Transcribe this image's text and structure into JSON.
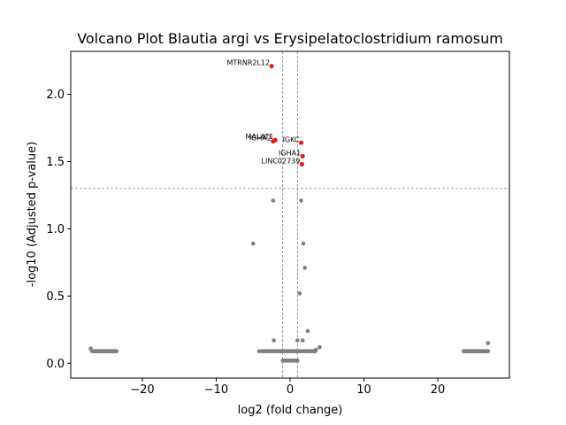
{
  "chart_data": {
    "type": "scatter",
    "title": "Volcano Plot Blautia argi vs Erysipelatoclostridium ramosum",
    "xlabel": "log2 (fold change)",
    "ylabel": "-log10 (Adjusted p-value)",
    "xlim": [
      -29.7,
      29.7
    ],
    "ylim": [
      -0.11,
      2.32
    ],
    "xticks": [
      -20,
      -10,
      0,
      10,
      20
    ],
    "yticks": [
      0.0,
      0.5,
      1.0,
      1.5,
      2.0
    ],
    "xtick_labels": [
      "−20",
      "−10",
      "0",
      "10",
      "20"
    ],
    "ytick_labels": [
      "0.0",
      "0.5",
      "1.0",
      "1.5",
      "2.0"
    ],
    "threshold_lines": {
      "vertical": [
        -1,
        1
      ],
      "horizontal": 1.3
    },
    "colors": {
      "significant": "#e8161b",
      "nonsignificant": "#808080",
      "threshold": "#808080"
    },
    "significant_points": [
      {
        "label": "MTRNR2L12",
        "x": -2.5,
        "y": 2.21
      },
      {
        "label": "MALAT1",
        "x": -2.0,
        "y": 1.66
      },
      {
        "label": "IGHA2",
        "x": -2.3,
        "y": 1.65
      },
      {
        "label": "IGKC",
        "x": 1.5,
        "y": 1.64
      },
      {
        "label": "IGHA1",
        "x": 1.7,
        "y": 1.54
      },
      {
        "label": "LINC02739",
        "x": 1.6,
        "y": 1.48
      }
    ],
    "nonsignificant_points": [
      {
        "x": -2.3,
        "y": 1.21
      },
      {
        "x": 1.5,
        "y": 1.21
      },
      {
        "x": -5.0,
        "y": 0.89
      },
      {
        "x": 1.8,
        "y": 0.89
      },
      {
        "x": 2.0,
        "y": 0.71
      },
      {
        "x": 1.3,
        "y": 0.52
      },
      {
        "x": 2.4,
        "y": 0.24
      },
      {
        "x": -2.2,
        "y": 0.17
      },
      {
        "x": 1.0,
        "y": 0.17
      },
      {
        "x": 1.7,
        "y": 0.17
      },
      {
        "x": 4.0,
        "y": 0.12
      },
      {
        "x": 3.5,
        "y": 0.1
      },
      {
        "x": -4.2,
        "y": 0.09
      },
      {
        "x": 26.8,
        "y": 0.15
      },
      {
        "x": -27.0,
        "y": 0.11
      }
    ],
    "point_clusters": [
      {
        "x_from": -26.8,
        "x_to": -23.5,
        "y": 0.09,
        "count": 40
      },
      {
        "x_from": 23.5,
        "x_to": 26.8,
        "y": 0.09,
        "count": 40
      },
      {
        "x_from": -3.8,
        "x_to": 3.4,
        "y": 0.09,
        "count": 60
      },
      {
        "x_from": -1.0,
        "x_to": 1.0,
        "y": 0.02,
        "count": 60
      }
    ]
  }
}
